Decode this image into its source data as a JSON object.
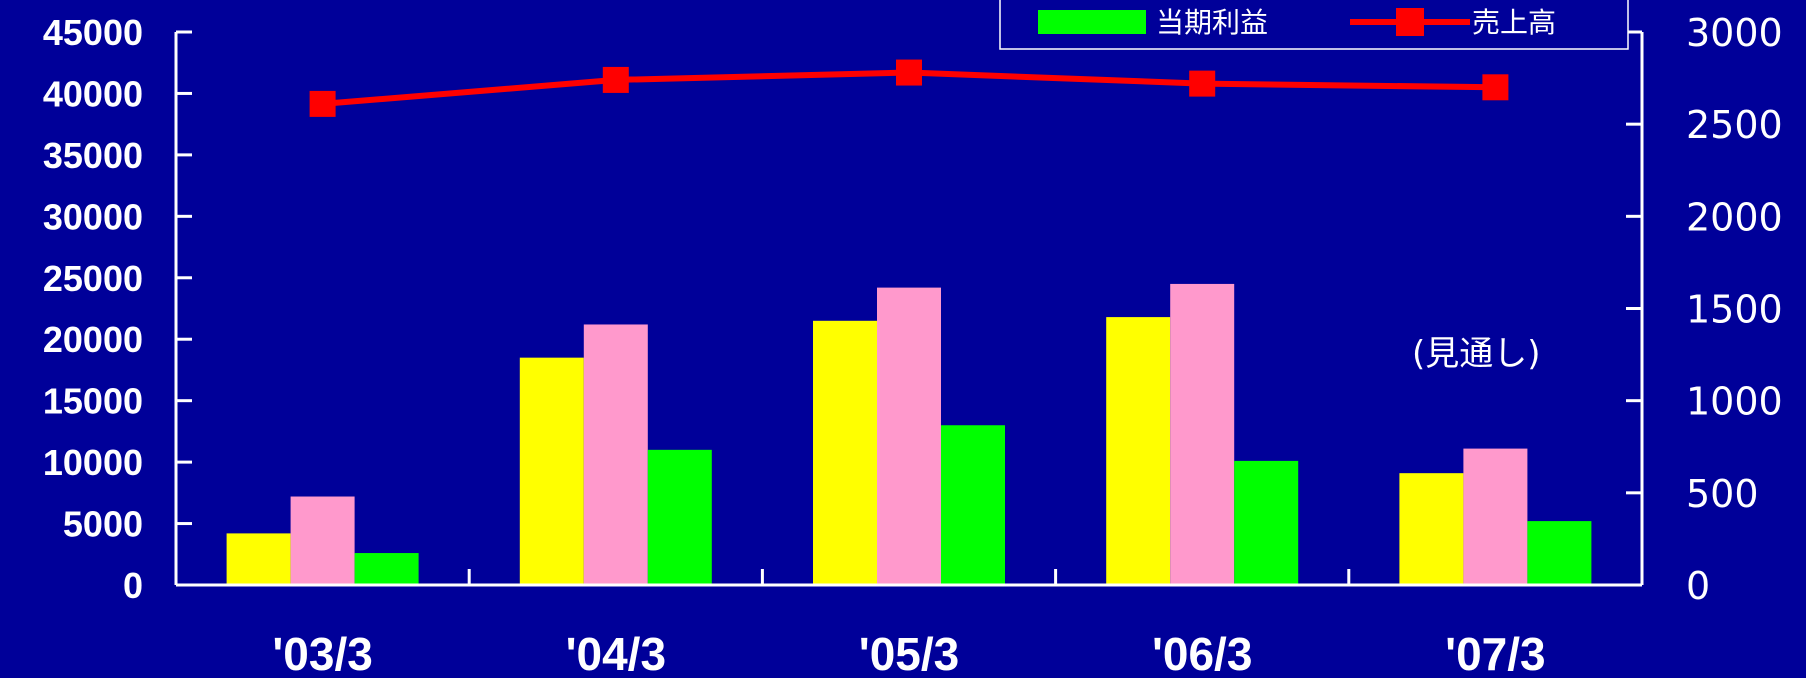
{
  "chart_data": {
    "type": "bar",
    "categories": [
      "'03/3",
      "'04/3",
      "'05/3",
      "'06/3",
      "'07/3"
    ],
    "series": [
      {
        "name": "",
        "axis": "left",
        "kind": "bar",
        "color": "#ffff00",
        "values": [
          4200,
          18500,
          21500,
          21800,
          9100
        ]
      },
      {
        "name": "",
        "axis": "left",
        "kind": "bar",
        "color": "#ff99cc",
        "values": [
          7200,
          21200,
          24200,
          24500,
          11100
        ]
      },
      {
        "name": "当期利益",
        "axis": "left",
        "kind": "bar",
        "color": "#00ff00",
        "values": [
          2600,
          11000,
          13000,
          10100,
          5200
        ]
      },
      {
        "name": "売上高",
        "axis": "right",
        "kind": "line",
        "color": "#ff0000",
        "values": [
          2610,
          2740,
          2780,
          2720,
          2700
        ]
      }
    ],
    "y_left": {
      "min": 0,
      "max": 45000,
      "ticks": [
        0,
        5000,
        10000,
        15000,
        20000,
        25000,
        30000,
        35000,
        40000,
        45000
      ]
    },
    "y_right": {
      "min": 0,
      "max": 3000,
      "ticks": [
        0,
        500,
        1000,
        1500,
        2000,
        2500,
        3000
      ]
    },
    "legend": {
      "placement": "top-right",
      "entries": [
        "当期利益",
        "売上高"
      ]
    },
    "annotations": [
      "(見通し)"
    ],
    "grid": false,
    "colors": {
      "background": "#000099",
      "axis": "#ffffff",
      "text": "#ffffff"
    }
  }
}
